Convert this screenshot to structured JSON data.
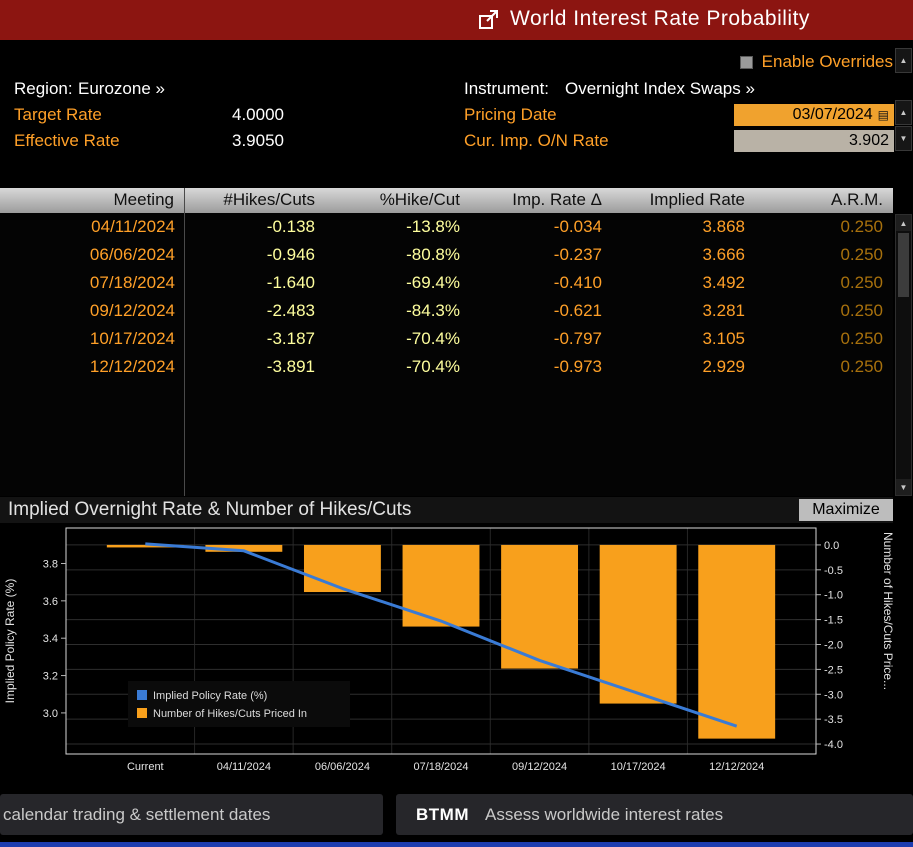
{
  "window": {
    "title": "World Interest Rate Probability"
  },
  "colors": {
    "titlebar_red": "#8c1511",
    "amber": "#ffa028",
    "pale_yellow": "#ffff9e",
    "dim_amber": "#a8710d",
    "line_blue": "#3a7bd5",
    "bar_orange": "#f8a01c"
  },
  "controls": {
    "enable_overrides_label": "Enable Overrides",
    "region_label": "Region:",
    "region_value": "Eurozone »",
    "instrument_label": "Instrument:",
    "instrument_value": "Overnight Index Swaps »",
    "target_rate_label": "Target Rate",
    "target_rate_value": "4.0000",
    "pricing_date_label": "Pricing Date",
    "pricing_date_value": "03/07/2024",
    "effective_rate_label": "Effective Rate",
    "effective_rate_value": "3.9050",
    "cur_imp_on_rate_label": "Cur. Imp. O/N Rate",
    "cur_imp_on_rate_value": "3.902"
  },
  "table": {
    "headers": [
      "Meeting",
      "#Hikes/Cuts",
      "%Hike/Cut",
      "Imp. Rate Δ",
      "Implied Rate",
      "A.R.M."
    ],
    "rows": [
      [
        "04/11/2024",
        "-0.138",
        "-13.8%",
        "-0.034",
        "3.868",
        "0.250"
      ],
      [
        "06/06/2024",
        "-0.946",
        "-80.8%",
        "-0.237",
        "3.666",
        "0.250"
      ],
      [
        "07/18/2024",
        "-1.640",
        "-69.4%",
        "-0.410",
        "3.492",
        "0.250"
      ],
      [
        "09/12/2024",
        "-2.483",
        "-84.3%",
        "-0.621",
        "3.281",
        "0.250"
      ],
      [
        "10/17/2024",
        "-3.187",
        "-70.4%",
        "-0.797",
        "3.105",
        "0.250"
      ],
      [
        "12/12/2024",
        "-3.891",
        "-70.4%",
        "-0.973",
        "2.929",
        "0.250"
      ]
    ]
  },
  "chart_section": {
    "title": "Implied Overnight Rate & Number of Hikes/Cuts",
    "maximize_label": "Maximize"
  },
  "chart_data": {
    "type": "combo",
    "categories": [
      "Current",
      "04/11/2024",
      "06/06/2024",
      "07/18/2024",
      "09/12/2024",
      "10/17/2024",
      "12/12/2024"
    ],
    "series": [
      {
        "name": "Implied Policy Rate (%)",
        "type": "line",
        "axis": "left",
        "color": "#3a7bd5",
        "values": [
          3.905,
          3.868,
          3.666,
          3.492,
          3.281,
          3.105,
          2.929
        ]
      },
      {
        "name": "Number of Hikes/Cuts Priced In",
        "type": "bar",
        "axis": "right",
        "color": "#f8a01c",
        "values": [
          0.0,
          -0.138,
          -0.946,
          -1.64,
          -2.483,
          -3.187,
          -3.891
        ]
      }
    ],
    "left_axis": {
      "label": "Implied Policy Rate (%)",
      "min": 2.78,
      "max": 3.99,
      "ticks": [
        "3.0",
        "3.2",
        "3.4",
        "3.6",
        "3.8"
      ]
    },
    "right_axis": {
      "label": "Number of Hikes/Cuts Price...",
      "min": -4.2,
      "max": 0.34,
      "ticks": [
        "0.0",
        "-0.5",
        "-1.0",
        "-1.5",
        "-2.0",
        "-2.5",
        "-3.0",
        "-3.5",
        "-4.0"
      ]
    },
    "legend": [
      "Implied Policy Rate (%)",
      "Number of Hikes/Cuts Priced In"
    ],
    "legend_position": "inside-bottom-left",
    "grid": true
  },
  "footer": {
    "left": "calendar trading & settlement dates",
    "right_code": "BTMM",
    "right_text": "Assess worldwide interest rates"
  },
  "icons": {
    "up": "▲",
    "down": "▼",
    "calendar": "▤"
  }
}
